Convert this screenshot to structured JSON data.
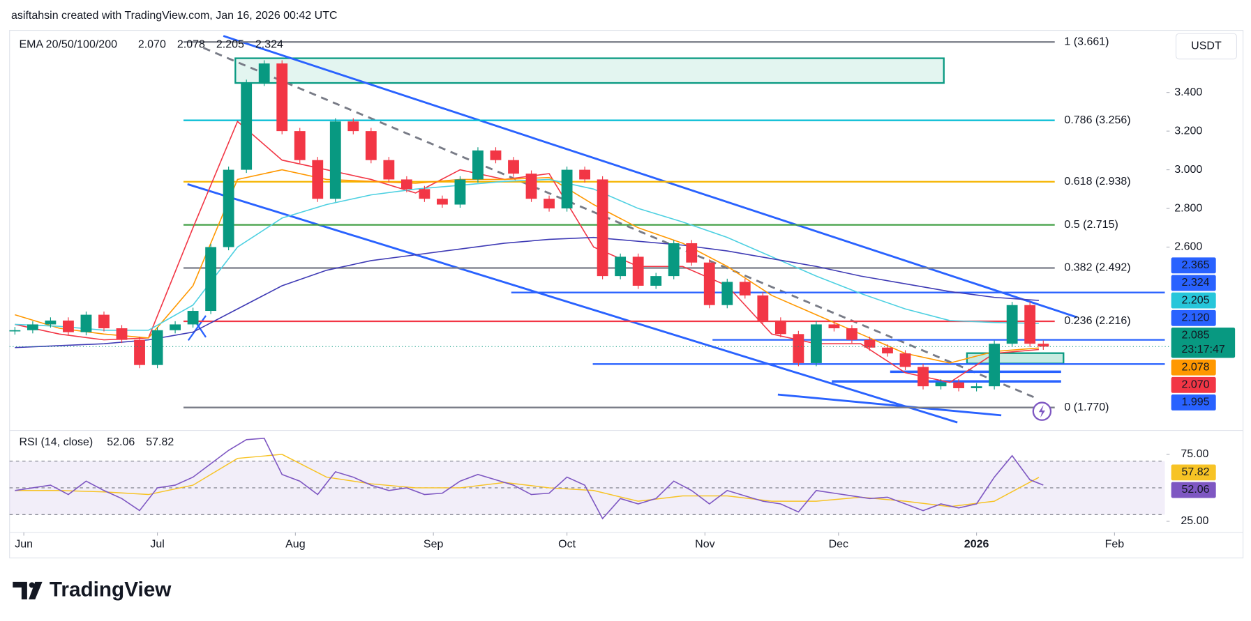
{
  "chart_data": {
    "type": "candlestick",
    "header": "asiftahsin created with TradingView.com, Jan 16, 2026 00:42 UTC",
    "legend_title": "EMA 20/50/100/200",
    "currency": "USDT",
    "brand": "TradingView",
    "xlim": [
      -3.2,
      256.3
    ],
    "xticks": [
      {
        "value": 0,
        "label": "Jun"
      },
      {
        "value": 30,
        "label": "Jul"
      },
      {
        "value": 61,
        "label": "Aug"
      },
      {
        "value": 92,
        "label": "Sep"
      },
      {
        "value": 122,
        "label": "Oct"
      },
      {
        "value": 153,
        "label": "Nov"
      },
      {
        "value": 183,
        "label": "Dec"
      },
      {
        "value": 214,
        "label": "2026"
      },
      {
        "value": 245,
        "label": "Feb"
      }
    ],
    "ylim": [
      1.672,
      3.713
    ],
    "yticks": [
      {
        "value": 3.4,
        "label": "3.400"
      },
      {
        "value": 3.2,
        "label": "3.200"
      },
      {
        "value": 3.0,
        "label": "3.000"
      },
      {
        "value": 2.8,
        "label": "2.800"
      },
      {
        "value": 2.6,
        "label": "2.600"
      }
    ],
    "up_color": "#089981",
    "down_color": "#f23645",
    "candles": {
      "x": [
        -2,
        2,
        6,
        10,
        14,
        18,
        22,
        26,
        30,
        34,
        38,
        42,
        46,
        50,
        54,
        58,
        62,
        66,
        70,
        74,
        78,
        82,
        86,
        90,
        94,
        98,
        102,
        106,
        110,
        114,
        118,
        122,
        126,
        130,
        134,
        138,
        142,
        146,
        150,
        154,
        158,
        162,
        166,
        170,
        174,
        178,
        182,
        186,
        190,
        194,
        198,
        202,
        206,
        210,
        214,
        218,
        222,
        226,
        229
      ],
      "close": [
        2.17,
        2.2,
        2.22,
        2.16,
        2.25,
        2.18,
        2.12,
        1.99,
        2.17,
        2.2,
        2.27,
        2.6,
        3.0,
        3.45,
        3.55,
        3.2,
        3.05,
        2.85,
        3.25,
        3.2,
        3.05,
        2.95,
        2.9,
        2.85,
        2.82,
        2.95,
        3.1,
        3.05,
        2.98,
        2.85,
        2.8,
        3.0,
        2.95,
        2.45,
        2.55,
        2.4,
        2.45,
        2.62,
        2.52,
        2.3,
        2.42,
        2.35,
        2.22,
        2.15,
        2.0,
        2.2,
        2.18,
        2.12,
        2.08,
        2.05,
        1.98,
        1.88,
        1.9,
        1.87,
        1.88,
        2.1,
        2.3,
        2.1,
        2.085
      ]
    },
    "ema": {
      "x": [
        -2,
        8,
        18,
        28,
        38,
        48,
        58,
        68,
        78,
        88,
        98,
        108,
        118,
        128,
        138,
        148,
        158,
        168,
        178,
        188,
        198,
        208,
        218,
        228
      ],
      "series": [
        {
          "color": "#f23645",
          "last_label": "2.070",
          "values": [
            2.2,
            2.15,
            2.12,
            2.13,
            2.7,
            3.25,
            3.05,
            3.0,
            2.95,
            2.88,
            3.0,
            2.95,
            2.98,
            2.6,
            2.5,
            2.5,
            2.4,
            2.15,
            2.1,
            2.1,
            1.95,
            1.9,
            2.05,
            2.07
          ]
        },
        {
          "color": "#ff9800",
          "last_label": "2.078",
          "values": [
            2.25,
            2.18,
            2.15,
            2.13,
            2.4,
            2.95,
            3.0,
            2.95,
            2.94,
            2.93,
            2.95,
            2.95,
            2.96,
            2.82,
            2.7,
            2.62,
            2.5,
            2.35,
            2.25,
            2.15,
            2.05,
            2.0,
            2.06,
            2.078
          ]
        },
        {
          "color": "#4dd0e1",
          "last_label": "2.205",
          "values": [
            2.2,
            2.19,
            2.17,
            2.17,
            2.3,
            2.6,
            2.75,
            2.82,
            2.87,
            2.9,
            2.92,
            2.94,
            2.95,
            2.9,
            2.8,
            2.73,
            2.65,
            2.55,
            2.45,
            2.36,
            2.28,
            2.22,
            2.21,
            2.205
          ]
        },
        {
          "color": "#3f3bb5",
          "last_label": "2.324",
          "values": [
            2.08,
            2.09,
            2.1,
            2.12,
            2.16,
            2.28,
            2.4,
            2.48,
            2.53,
            2.56,
            2.59,
            2.62,
            2.64,
            2.65,
            2.63,
            2.61,
            2.58,
            2.54,
            2.5,
            2.45,
            2.41,
            2.37,
            2.34,
            2.324
          ]
        }
      ]
    },
    "fib_levels": [
      {
        "value": 3.661,
        "label": "1 (3.661)",
        "color": "#787b86"
      },
      {
        "value": 3.256,
        "label": "0.786 (3.256)",
        "color": "#00bcd4"
      },
      {
        "value": 2.938,
        "label": "0.618 (2.938)",
        "color": "#f5b400"
      },
      {
        "value": 2.715,
        "label": "0.5 (2.715)",
        "color": "#43a047"
      },
      {
        "value": 2.492,
        "label": "0.382 (2.492)",
        "color": "#787b86"
      },
      {
        "value": 2.216,
        "label": "0.236 (2.216)",
        "color": "#f23645"
      },
      {
        "value": 1.77,
        "label": "0 (1.770)",
        "color": "#787b86"
      }
    ],
    "levels": [
      {
        "value": 2.365,
        "from": 109.5,
        "to": 256.3
      },
      {
        "value": 2.12,
        "from": 154.7,
        "to": 256.3
      },
      {
        "value": 1.995,
        "from": 127.8,
        "to": 256.3
      },
      {
        "value": 1.955,
        "from": 194.6,
        "to": 233
      },
      {
        "value": 1.905,
        "from": 181.5,
        "to": 233
      }
    ],
    "price_badges": [
      {
        "value": 2.365,
        "label": "2.365",
        "color": "#2962ff"
      },
      {
        "value": 2.324,
        "label": "2.324",
        "color": "#2962ff"
      },
      {
        "value": 2.205,
        "label": "2.205",
        "color": "#26c6da"
      },
      {
        "value": 2.12,
        "label": "2.120",
        "color": "#2962ff"
      },
      {
        "value": 2.085,
        "label": "2.085",
        "sub": "23:17:47",
        "color": "#089981"
      },
      {
        "value": 2.078,
        "label": "2.078",
        "color": "#ff9800"
      },
      {
        "value": 2.07,
        "label": "2.070",
        "color": "#f23645"
      },
      {
        "value": 1.995,
        "label": "1.995",
        "color": "#2962ff"
      }
    ],
    "rsi": {
      "title": "RSI (14, close)",
      "color": "#7e57c2",
      "ma_color": "#f7c325",
      "ylim": [
        18.45,
        89.9
      ],
      "yticks": [
        {
          "value": 75,
          "label": "75.00"
        },
        {
          "value": 25,
          "label": "25.00"
        }
      ],
      "bands": [
        70,
        50,
        30
      ],
      "last_label": "52.06",
      "ma_last_label": "57.82",
      "values": [
        48,
        50,
        52,
        45,
        55,
        48,
        42,
        33,
        50,
        52,
        58,
        68,
        78,
        86,
        87,
        60,
        55,
        45,
        62,
        58,
        52,
        48,
        50,
        45,
        46,
        55,
        60,
        56,
        52,
        45,
        46,
        58,
        52,
        27,
        42,
        38,
        42,
        55,
        48,
        38,
        48,
        44,
        40,
        38,
        32,
        48,
        46,
        44,
        42,
        43,
        38,
        33,
        38,
        35,
        38,
        58,
        74,
        56,
        52.06
      ],
      "ma_values": [
        48,
        48,
        47,
        45,
        52,
        72,
        75,
        58,
        53,
        50,
        50,
        54,
        50,
        48,
        40,
        44,
        44,
        40,
        40,
        43,
        40,
        36,
        40,
        57.82
      ]
    }
  }
}
